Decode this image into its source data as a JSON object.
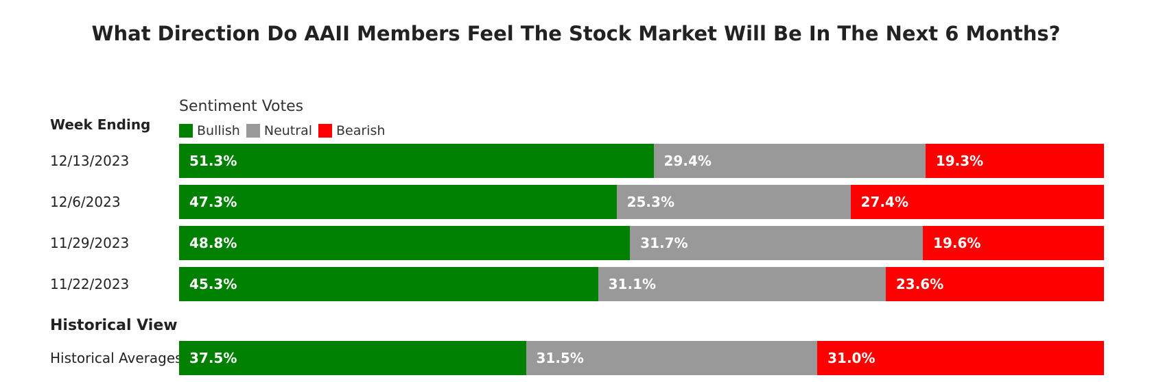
{
  "title": "What Direction Do AAII Members Feel The Stock Market Will Be In The Next 6 Months?",
  "legend_title": "Sentiment Votes",
  "section_headers": {
    "week": "Week Ending",
    "historical": "Historical View"
  },
  "colors": {
    "bullish": "#008000",
    "neutral": "#999999",
    "bearish": "#ff0000"
  },
  "chart_data": {
    "type": "bar",
    "stacked": true,
    "orientation": "horizontal",
    "legend_placement": "top-left",
    "series_names": [
      "Bullish",
      "Neutral",
      "Bearish"
    ],
    "rows": [
      {
        "label": "12/13/2023",
        "group": "week",
        "values": [
          51.3,
          29.4,
          19.3
        ],
        "value_labels": [
          "51.3%",
          "29.4%",
          "19.3%"
        ]
      },
      {
        "label": "12/6/2023",
        "group": "week",
        "values": [
          47.3,
          25.3,
          27.4
        ],
        "value_labels": [
          "47.3%",
          "25.3%",
          "27.4%"
        ]
      },
      {
        "label": "11/29/2023",
        "group": "week",
        "values": [
          48.8,
          31.7,
          19.6
        ],
        "value_labels": [
          "48.8%",
          "31.7%",
          "19.6%"
        ]
      },
      {
        "label": "11/22/2023",
        "group": "week",
        "values": [
          45.3,
          31.1,
          23.6
        ],
        "value_labels": [
          "45.3%",
          "31.1%",
          "23.6%"
        ]
      },
      {
        "label": "Historical Averages",
        "group": "historical",
        "values": [
          37.5,
          31.5,
          31.0
        ],
        "value_labels": [
          "37.5%",
          "31.5%",
          "31.0%"
        ]
      }
    ]
  }
}
